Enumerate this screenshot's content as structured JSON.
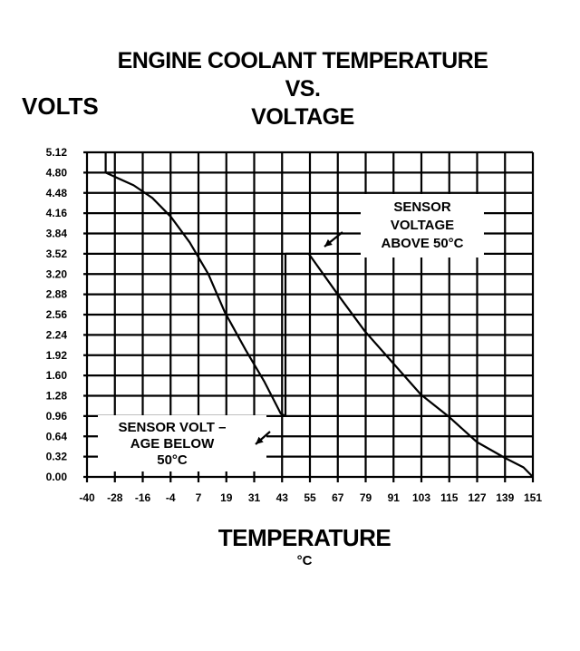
{
  "chart_data": {
    "type": "line",
    "title_lines": [
      "ENGINE COOLANT TEMPERATURE",
      "VS.",
      "VOLTAGE"
    ],
    "ylabel": "VOLTS",
    "xlabel": "TEMPERATURE",
    "xunit": "°C",
    "grid": true,
    "x_tick_labels": [
      "-40",
      "-28",
      "-16",
      "-4",
      "7",
      "19",
      "31",
      "43",
      "55",
      "67",
      "79",
      "91",
      "103",
      "115",
      "127",
      "139",
      "151"
    ],
    "y_tick_labels": [
      "5.12",
      "4.80",
      "4.48",
      "4.16",
      "3.84",
      "3.52",
      "3.20",
      "2.88",
      "2.56",
      "2.24",
      "1.92",
      "1.60",
      "1.28",
      "0.96",
      "0.64",
      "0.32",
      "0.00"
    ],
    "xlim": [
      -40,
      151
    ],
    "ylim": [
      0,
      5.12
    ],
    "series": [
      {
        "segment": "below_50C",
        "points": [
          [
            -32,
            5.12
          ],
          [
            -32,
            4.8
          ],
          [
            -20,
            4.6
          ],
          [
            -12,
            4.4
          ],
          [
            -4,
            4.1
          ],
          [
            4,
            3.7
          ],
          [
            12,
            3.2
          ],
          [
            19,
            2.6
          ],
          [
            28,
            2.0
          ],
          [
            36,
            1.5
          ],
          [
            43,
            1.0
          ],
          [
            45,
            0.96
          ],
          [
            45,
            3.52
          ]
        ]
      },
      {
        "segment": "above_50C",
        "points": [
          [
            45,
            3.52
          ],
          [
            55,
            3.52
          ],
          [
            67,
            2.9
          ],
          [
            79,
            2.3
          ],
          [
            91,
            1.8
          ],
          [
            103,
            1.3
          ],
          [
            115,
            0.95
          ],
          [
            127,
            0.55
          ],
          [
            139,
            0.3
          ],
          [
            147,
            0.15
          ],
          [
            151,
            0.0
          ]
        ]
      }
    ],
    "annotations": [
      {
        "lines": [
          "SENSOR",
          "VOLTAGE",
          "ABOVE 50°C"
        ]
      },
      {
        "lines": [
          "SENSOR VOLT –",
          "AGE BELOW",
          "50°C"
        ]
      }
    ]
  }
}
